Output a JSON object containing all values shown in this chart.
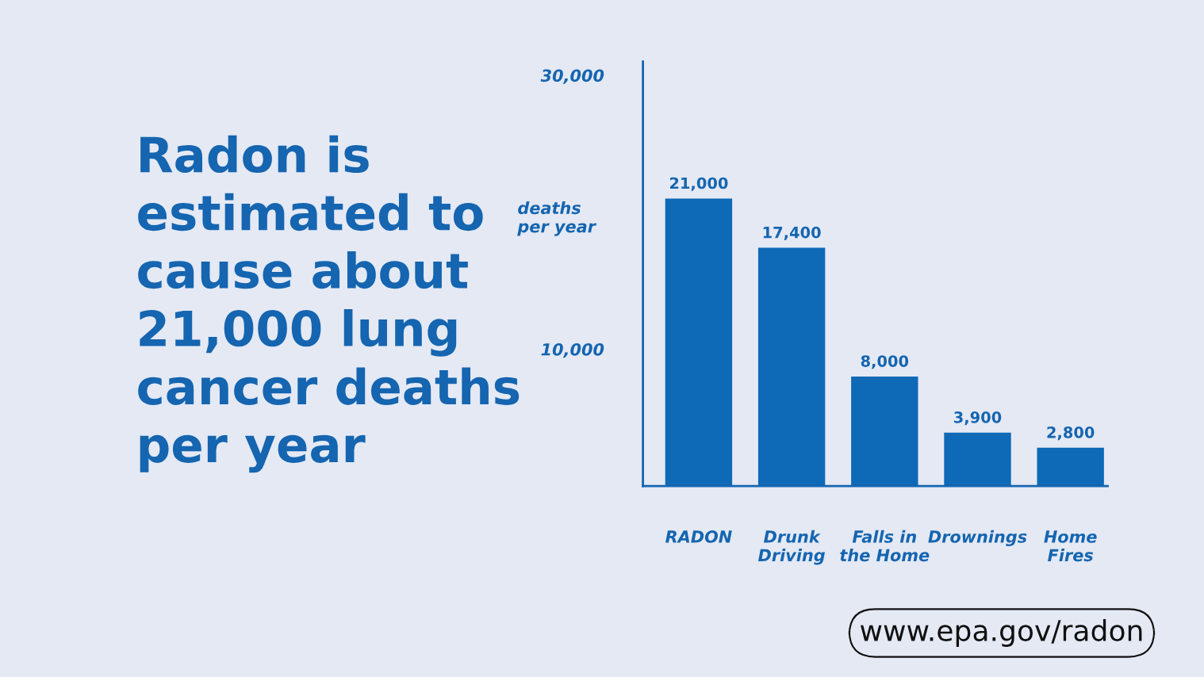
{
  "chart_data": {
    "type": "bar",
    "title": "Radon is\nestimated to\ncause about\n21,000 lung\ncancer deaths\nper year",
    "ylabel": "deaths\nper year",
    "categories": [
      "RADON",
      "Drunk\nDriving",
      "Falls in\nthe Home",
      "Drownings",
      "Home\nFires"
    ],
    "values": [
      21000,
      17400,
      8000,
      3900,
      2800
    ],
    "value_labels": [
      "21,000",
      "17,400",
      "8,000",
      "3,900",
      "2,800"
    ],
    "color": "#0e69b6",
    "ylim": [
      0,
      31000
    ],
    "yticks": [
      {
        "value": 30000,
        "label": "30,000"
      },
      {
        "value": 10000,
        "label": "10,000"
      }
    ],
    "grid": false,
    "annotations": [
      "www.epa.gov/radon"
    ]
  }
}
